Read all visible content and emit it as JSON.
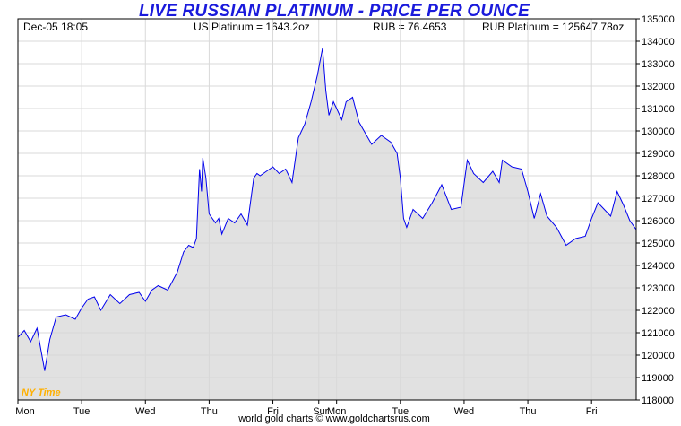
{
  "header": {
    "title": "LIVE RUSSIAN PLATINUM - PRICE PER OUNCE",
    "datetime": "Dec-05  18:05",
    "us_platinum": "US Platinum = 1643.2oz",
    "rub_rate": "RUB = 76.4653",
    "rub_platinum": "RUB Platinum = 125647.78oz"
  },
  "footer": {
    "credit": "world gold charts © www.goldchartsrus.com"
  },
  "timezone_label": "NY Time",
  "colors": {
    "title": "#1a1adc",
    "line": "#0000ee",
    "fill": "#d7d7d7",
    "grid": "#d9d9d9",
    "timezone": "#ffb000"
  },
  "chart_data": {
    "type": "area",
    "title": "LIVE RUSSIAN PLATINUM - PRICE PER OUNCE",
    "xlabel": "",
    "ylabel": "",
    "ylim": [
      118000,
      135000
    ],
    "y_ticks": [
      118000,
      119000,
      120000,
      121000,
      122000,
      123000,
      124000,
      125000,
      126000,
      127000,
      128000,
      129000,
      130000,
      131000,
      132000,
      133000,
      134000,
      135000
    ],
    "x_ticks": [
      "Mon",
      "Tue",
      "Wed",
      "Thu",
      "Fri",
      "Sur",
      "Mon",
      "Tue",
      "Wed",
      "Thu",
      "Fri"
    ],
    "xlim": [
      0,
      9.7
    ],
    "x_tick_positions": [
      0,
      1,
      2,
      3,
      4,
      4.72,
      5,
      6,
      7,
      8,
      9
    ],
    "grid": true,
    "series": [
      {
        "x": [
          0,
          0.1,
          0.2,
          0.3,
          0.42,
          0.5,
          0.6,
          0.75,
          0.9,
          1.0,
          1.1,
          1.2,
          1.3,
          1.45,
          1.6,
          1.75,
          1.9,
          2.0,
          2.1,
          2.2,
          2.35,
          2.5,
          2.6,
          2.68,
          2.75,
          2.8,
          2.85,
          2.88,
          2.9,
          2.95,
          3.0,
          3.1,
          3.15,
          3.2,
          3.3,
          3.4,
          3.5,
          3.6,
          3.7,
          3.75,
          3.8,
          3.9,
          4.0,
          4.1,
          4.2,
          4.3,
          4.4,
          4.5,
          4.6,
          4.7,
          4.78,
          4.83,
          4.88,
          4.95,
          5.0,
          5.08,
          5.15,
          5.25,
          5.35,
          5.45,
          5.55,
          5.7,
          5.85,
          5.95,
          6.0,
          6.05,
          6.1,
          6.2,
          6.35,
          6.5,
          6.65,
          6.8,
          6.95,
          7.05,
          7.15,
          7.3,
          7.45,
          7.55,
          7.6,
          7.75,
          7.9,
          8.0,
          8.1,
          8.2,
          8.3,
          8.45,
          8.6,
          8.75,
          8.9,
          9.0,
          9.1,
          9.2,
          9.3,
          9.4,
          9.5,
          9.6,
          9.7
        ],
        "y": [
          120800,
          121100,
          120600,
          121200,
          119300,
          120700,
          121700,
          121800,
          121600,
          122100,
          122500,
          122600,
          122000,
          122700,
          122300,
          122700,
          122800,
          122400,
          122900,
          123100,
          122900,
          123700,
          124600,
          124900,
          124800,
          125200,
          128300,
          127300,
          128800,
          127900,
          126300,
          125900,
          126100,
          125400,
          126100,
          125900,
          126300,
          125800,
          127900,
          128100,
          128000,
          128200,
          128400,
          128100,
          128300,
          127700,
          129700,
          130300,
          131300,
          132500,
          133700,
          131800,
          130700,
          131300,
          131000,
          130500,
          131300,
          131500,
          130400,
          129900,
          129400,
          129800,
          129500,
          129000,
          127900,
          126100,
          125700,
          126500,
          126100,
          126800,
          127600,
          126500,
          126600,
          128700,
          128100,
          127700,
          128200,
          127700,
          128700,
          128400,
          128300,
          127300,
          126100,
          127200,
          126200,
          125700,
          124900,
          125200,
          125300,
          126100,
          126800,
          126500,
          126200,
          127300,
          126700,
          126000,
          125600
        ]
      }
    ]
  }
}
